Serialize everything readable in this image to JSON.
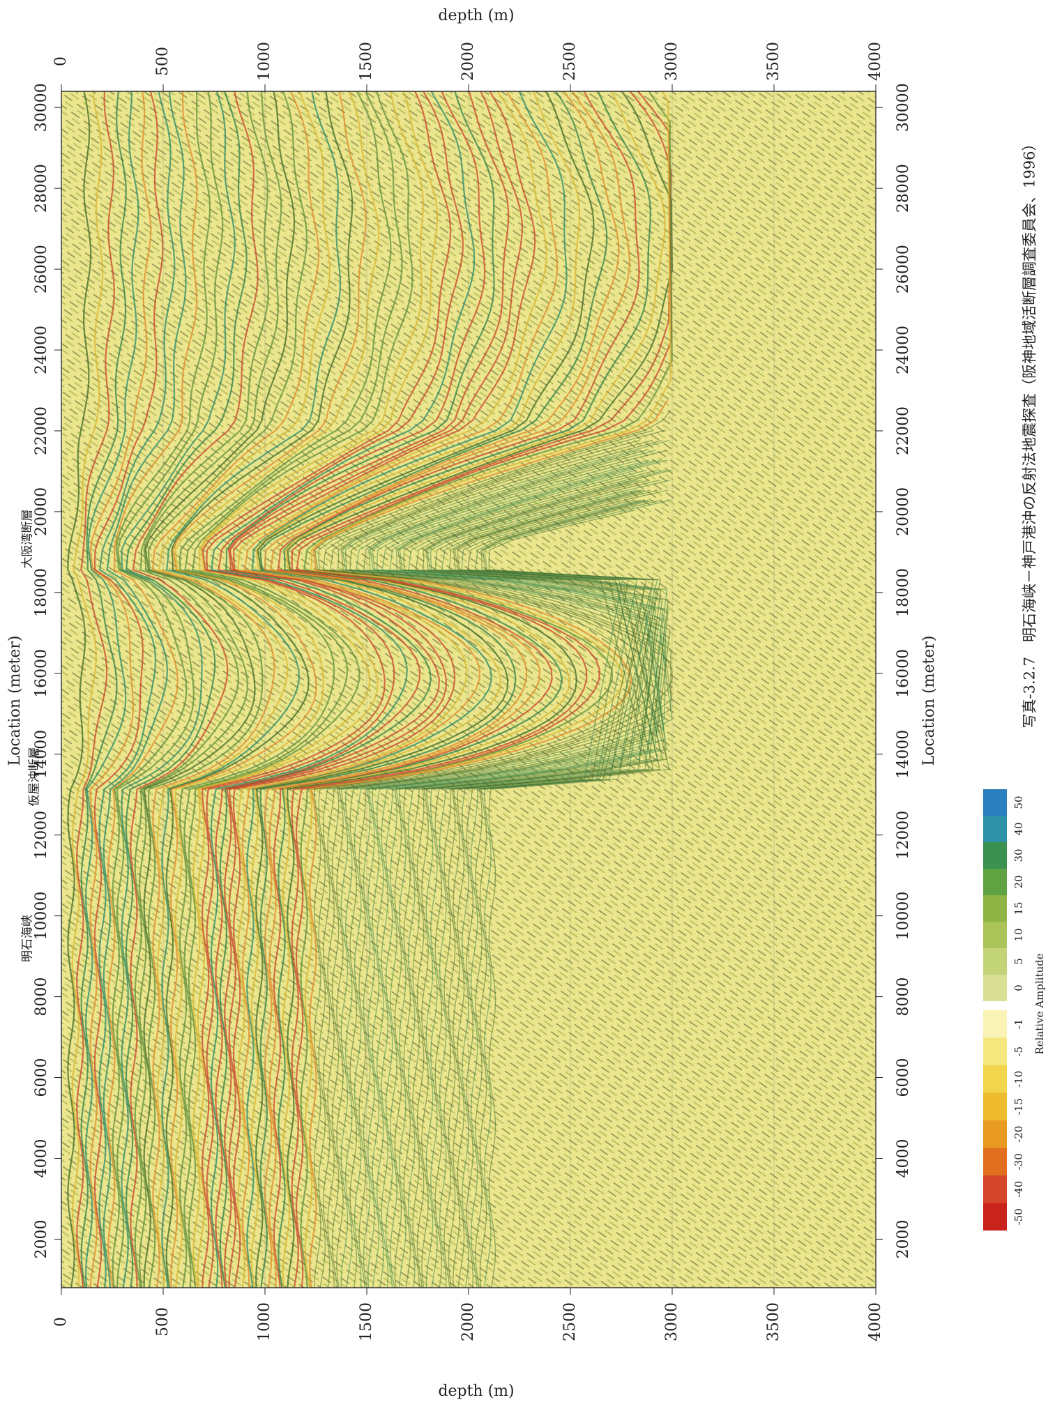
{
  "figure": {
    "caption": "写真-3.2.7　明石海峡－神戸港沖の反射法地震探査（阪神地域活断層調査委員会、1996）",
    "depth_axis": {
      "label": "depth (m)",
      "lim": [
        0,
        4000
      ],
      "ticks": [
        0,
        500,
        1000,
        1500,
        2000,
        2500,
        3000,
        3500,
        4000
      ]
    },
    "location_axis": {
      "label": "Location (meter)",
      "lim": [
        800,
        30400
      ],
      "ticks": [
        2000,
        4000,
        6000,
        8000,
        10000,
        12000,
        14000,
        16000,
        18000,
        20000,
        22000,
        24000,
        26000,
        28000,
        30000
      ]
    },
    "annotations": [
      "明石海峡",
      "仮屋沖断層",
      "大阪湾断層"
    ],
    "colorbar": {
      "title": "Relative Amplitude",
      "ticks": [
        -50,
        -40,
        -30,
        -20,
        -15,
        -10,
        -5,
        -1,
        0,
        5,
        10,
        15,
        20,
        30,
        40,
        50
      ],
      "colors": [
        "#c8231c",
        "#d6462a",
        "#e0701f",
        "#e89a22",
        "#efbc30",
        "#f2d54c",
        "#f6e67e",
        "#faf3b6",
        "#d9e096",
        "#c3d377",
        "#abc45a",
        "#8fb446",
        "#5fa242",
        "#3b9150",
        "#2f93a8",
        "#2b7fbf"
      ]
    }
  }
}
